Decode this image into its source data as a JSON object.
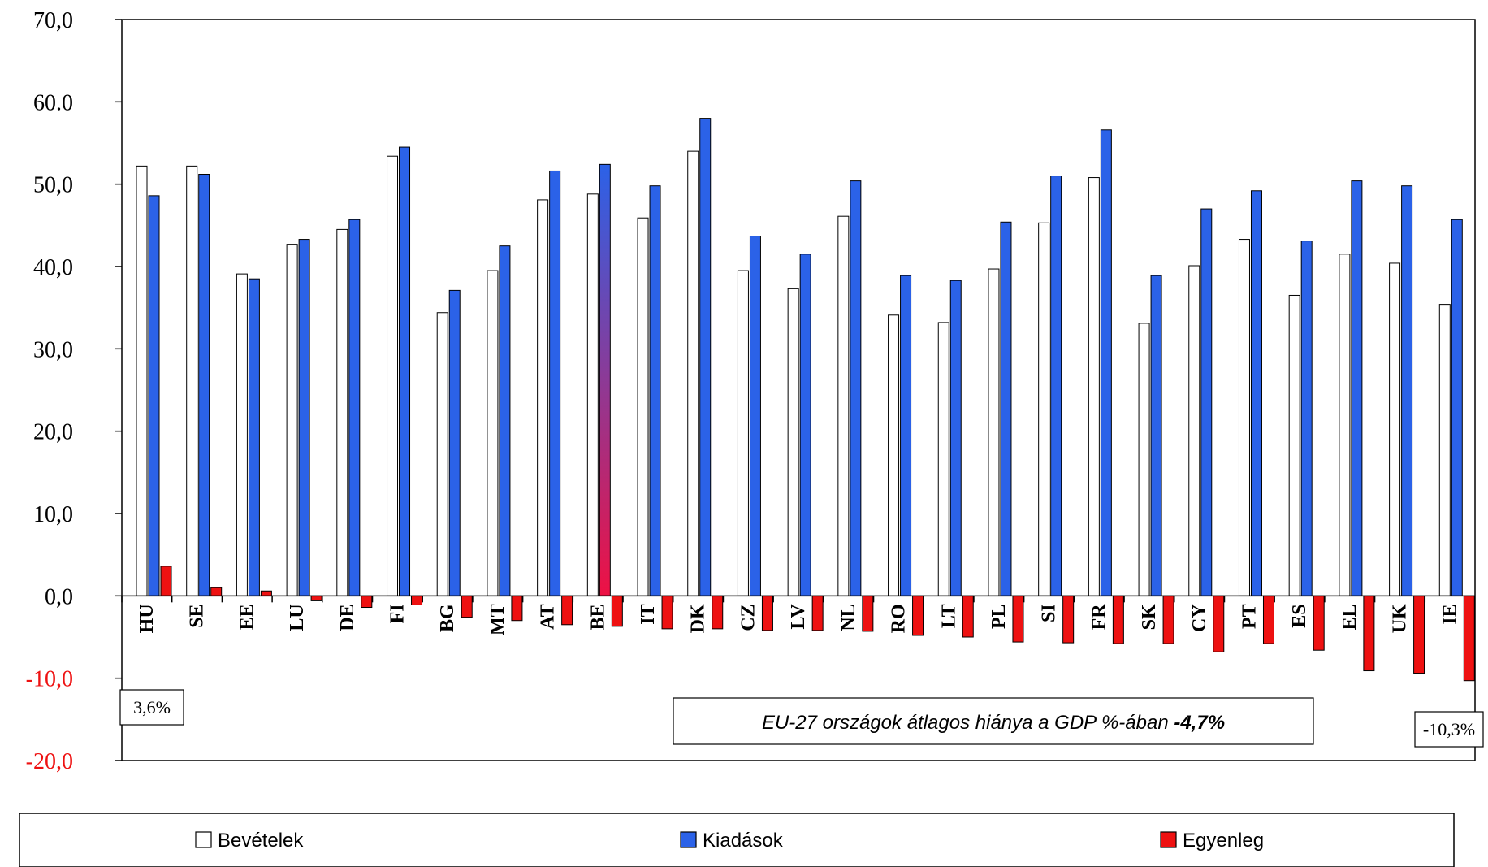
{
  "chart_data": {
    "type": "bar",
    "categories": [
      "HU",
      "SE",
      "EE",
      "LU",
      "DE",
      "FI",
      "BG",
      "MT",
      "AT",
      "BE",
      "IT",
      "DK",
      "CZ",
      "LV",
      "NL",
      "RO",
      "LT",
      "PL",
      "SI",
      "FR",
      "SK",
      "CY",
      "PT",
      "ES",
      "EL",
      "UK",
      "IE"
    ],
    "series": [
      {
        "name": "Bevételek",
        "color": "#ffffff",
        "values": [
          52.2,
          52.2,
          39.1,
          42.7,
          44.5,
          53.4,
          34.4,
          39.5,
          48.1,
          48.8,
          45.9,
          54.0,
          39.5,
          37.3,
          46.1,
          34.1,
          33.2,
          39.7,
          45.3,
          50.8,
          33.1,
          40.1,
          43.3,
          36.5,
          41.5,
          40.4,
          35.4
        ]
      },
      {
        "name": "Kiadások",
        "color": "#2b62e8",
        "values": [
          48.6,
          51.2,
          38.5,
          43.3,
          45.7,
          54.5,
          37.1,
          42.5,
          51.6,
          52.4,
          49.8,
          58.0,
          43.7,
          41.5,
          50.4,
          38.9,
          38.3,
          45.4,
          51.0,
          56.6,
          38.9,
          47.0,
          49.2,
          43.1,
          50.4,
          49.8,
          45.7
        ]
      },
      {
        "name": "Egyenleg",
        "color": "#ee1111",
        "values": [
          3.6,
          1.0,
          0.6,
          -0.6,
          -1.4,
          -1.1,
          -2.6,
          -3.0,
          -3.5,
          -3.7,
          -4.0,
          -4.0,
          -4.2,
          -4.2,
          -4.3,
          -4.8,
          -5.0,
          -5.6,
          -5.7,
          -5.8,
          -5.8,
          -6.8,
          -5.8,
          -6.6,
          -9.1,
          -9.4,
          -10.3
        ]
      }
    ],
    "yticks": [
      "70,0",
      "60.0",
      "50,0",
      "40,0",
      "30,0",
      "20,0",
      "10,0",
      "0,0",
      "-10,0",
      "-20,0"
    ],
    "negative_tick_color": "#ee1111",
    "ylim": [
      -20,
      70
    ],
    "grid": false,
    "legend_position": "bottom",
    "annotations": {
      "max_label": "3,6%",
      "min_label": "-10,3%",
      "note_text": "EU-27 országok átlagos hiánya a GDP %-ában ",
      "note_value": "-4,7%"
    }
  }
}
